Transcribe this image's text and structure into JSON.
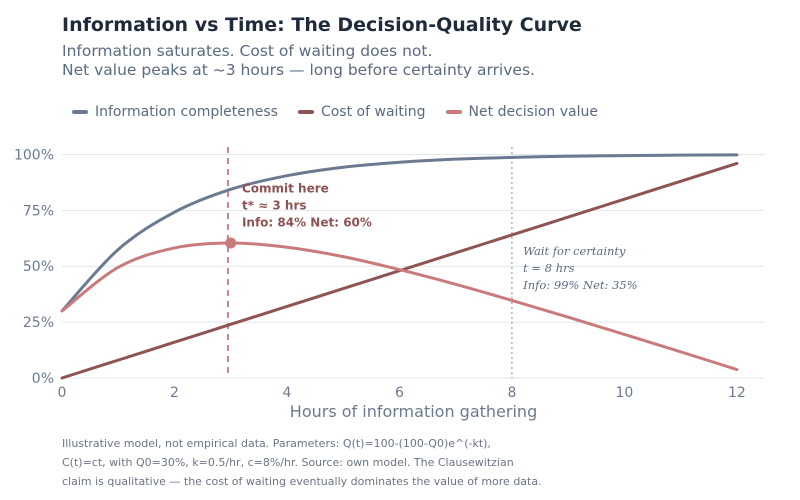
{
  "title": "Information vs Time: The Decision-Quality Curve",
  "subtitle_lines": [
    "Information saturates. Cost of waiting does not.",
    "Net value peaks at ~3 hours — long before certainty arrives."
  ],
  "colors": {
    "info": "#6b7a90",
    "cost": "#8e5353",
    "net": "#c97a7a",
    "commit": "#c97a7a",
    "wait": "#9a9aa6",
    "annotation_commit": "#8e5353",
    "annotation_wait": "#5b6b80",
    "tick": "#6b7a90",
    "grid": "#e3e6ec"
  },
  "chart_data": {
    "type": "line",
    "xlabel": "Hours of information gathering",
    "ylabel": "",
    "xlim": [
      0,
      12.5
    ],
    "ylim": [
      0,
      102
    ],
    "x_ticks": [
      0,
      2,
      4,
      6,
      8,
      10,
      12
    ],
    "y_ticks": [
      0,
      25,
      50,
      75,
      100
    ],
    "y_tick_labels": [
      "0%",
      "25%",
      "50%",
      "75%",
      "100%"
    ],
    "grid": "horizontal",
    "legend_placement": "top-left",
    "series": [
      {
        "name": "Information completeness",
        "x": [
          0,
          1,
          2,
          3,
          4,
          5,
          6,
          7,
          8,
          9,
          10,
          11,
          12
        ],
        "values": [
          30,
          57.5,
          74.2,
          84.4,
          90.5,
          94.3,
          96.5,
          97.9,
          98.7,
          99.2,
          99.5,
          99.7,
          99.8
        ]
      },
      {
        "name": "Cost of waiting",
        "x": [
          0,
          1,
          2,
          3,
          4,
          5,
          6,
          7,
          8,
          9,
          10,
          11,
          12
        ],
        "values": [
          0,
          8,
          16,
          24,
          32,
          40,
          48,
          56,
          64,
          72,
          80,
          88,
          96
        ]
      },
      {
        "name": "Net decision value",
        "x": [
          0,
          1,
          2,
          3,
          4,
          5,
          6,
          7,
          8,
          9,
          10,
          11,
          12
        ],
        "values": [
          30,
          49.5,
          58.2,
          60.4,
          58.5,
          54.3,
          48.5,
          41.9,
          34.7,
          27.2,
          19.5,
          11.7,
          3.8
        ]
      }
    ],
    "markers": [
      {
        "x": 3,
        "y": 60.4,
        "series": "Net decision value"
      }
    ],
    "vlines": [
      {
        "x": 2.95,
        "style": "dashed"
      },
      {
        "x": 8,
        "style": "dotted"
      }
    ],
    "annotations": [
      {
        "x": 3.2,
        "y": 83,
        "lines": [
          "Commit here",
          "t* ≈ 3 hrs",
          "Info: 84%   Net: 60%"
        ],
        "style": "bold"
      },
      {
        "x": 8.2,
        "y": 55,
        "lines": [
          "Wait for certainty",
          "t = 8 hrs",
          "Info: 99%   Net: 35%"
        ],
        "style": "italic"
      }
    ]
  },
  "caption_lines": [
    "Illustrative model, not empirical data. Parameters: Q(t)=100-(100-Q0)e^(-kt),",
    "C(t)=ct, with Q0=30%, k=0.5/hr, c=8%/hr. Source: own model. The Clausewitzian",
    "claim is qualitative — the cost of waiting eventually dominates the value of more data."
  ]
}
